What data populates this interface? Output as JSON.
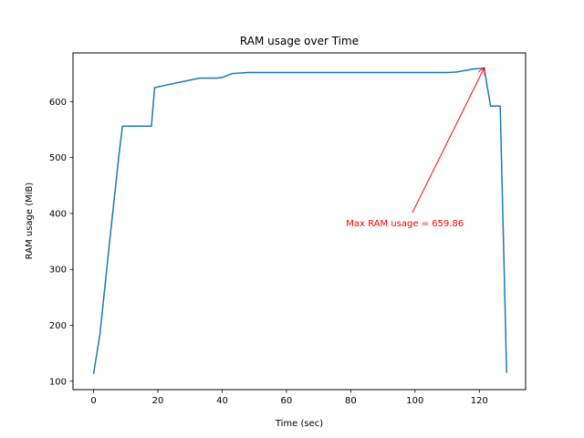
{
  "chart_data": {
    "type": "line",
    "title": "RAM usage over Time",
    "xlabel": "Time (sec)",
    "ylabel": "RAM usage (MiB)",
    "xlim": [
      -6.4,
      134.4
    ],
    "ylim": [
      85,
      687
    ],
    "xticks": [
      0,
      20,
      40,
      60,
      80,
      100,
      120
    ],
    "yticks": [
      100,
      200,
      300,
      400,
      500,
      600
    ],
    "grid": false,
    "line_color": "#1f77b4",
    "annotation": {
      "text": "Max RAM usage = 659.86",
      "color": "#ff0000",
      "point": [
        121.5,
        659.86
      ],
      "text_at": [
        98,
        383
      ]
    },
    "series": [
      {
        "x": [
          0,
          2,
          5,
          8,
          9,
          13,
          18,
          19,
          23,
          28,
          33,
          38,
          40,
          43,
          48,
          55,
          70,
          90,
          104,
          110,
          113,
          118,
          121.5,
          123.5,
          125.5,
          126.5,
          128.5
        ],
        "y": [
          113,
          185,
          350,
          510,
          556,
          556,
          556,
          625,
          630,
          636,
          642,
          642,
          643,
          650,
          652,
          652,
          652,
          652,
          652,
          652,
          653,
          658,
          659.86,
          592,
          592,
          592,
          115
        ]
      }
    ]
  }
}
